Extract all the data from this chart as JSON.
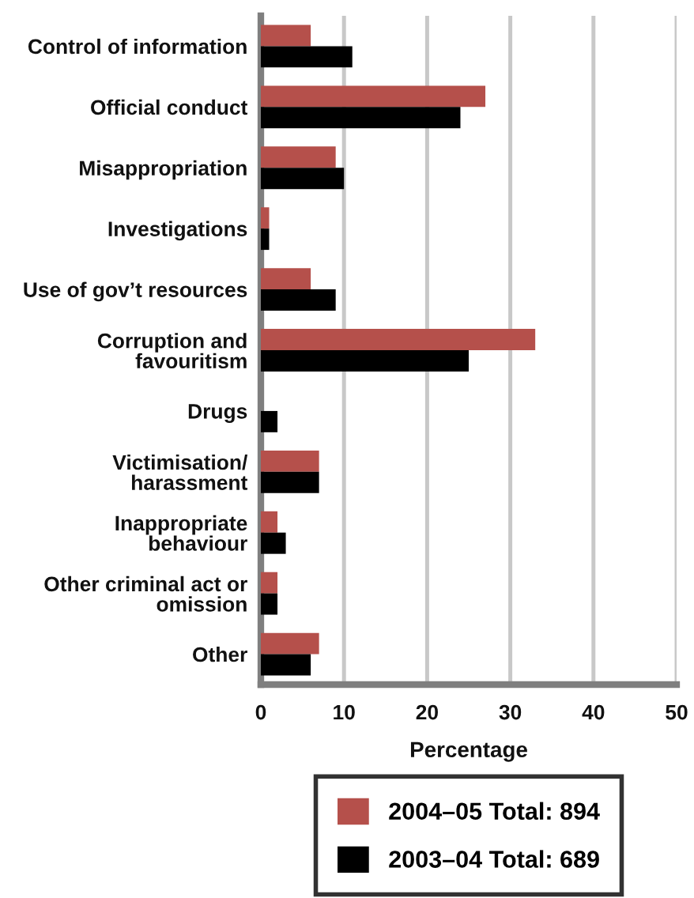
{
  "chart_data": {
    "type": "bar",
    "orientation": "horizontal",
    "categories": [
      "Control of information",
      "Official conduct",
      "Misappropriation",
      "Investigations",
      "Use of gov’t resources",
      "Corruption and\nfavouritism",
      "Drugs",
      "Victimisation/\nharassment",
      "Inappropriate\nbehaviour",
      "Other criminal act or\nomission",
      "Other"
    ],
    "series": [
      {
        "name": "2004–05 Total: 894",
        "color": "#b5504b",
        "values": [
          6,
          27,
          9,
          1,
          6,
          33,
          0,
          7,
          2,
          2,
          7
        ]
      },
      {
        "name": "2003–04 Total: 689",
        "color": "#000000",
        "values": [
          11,
          24,
          10,
          1,
          9,
          25,
          2,
          7,
          3,
          2,
          6
        ]
      }
    ],
    "xlabel": "Percentage",
    "xlim": [
      0,
      50
    ],
    "xticks": [
      0,
      10,
      20,
      30,
      40,
      50
    ],
    "grid": "x",
    "legend": "bottom"
  }
}
